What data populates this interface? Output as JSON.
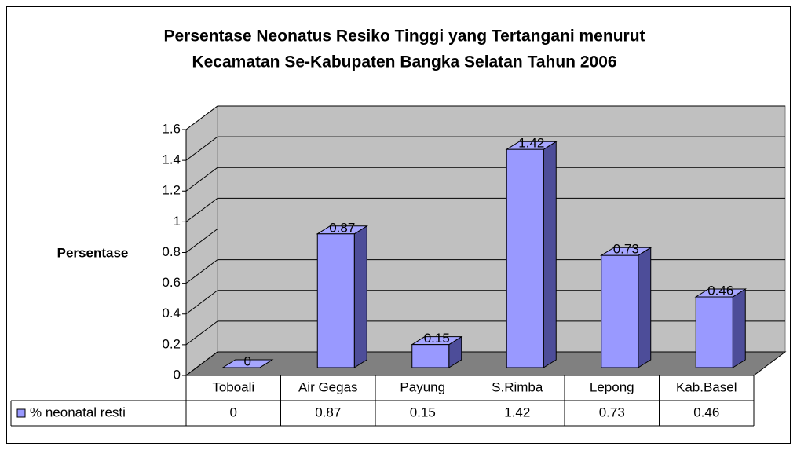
{
  "chart_data": {
    "type": "bar",
    "title": [
      "Persentase Neonatus Resiko Tinggi yang Tertangani menurut",
      "Kecamatan Se-Kabupaten Bangka Selatan Tahun 2006"
    ],
    "y_label": "Persentase",
    "categories": [
      "Toboali",
      "Air Gegas",
      "Payung",
      "S.Rimba",
      "Lepong",
      "Kab.Basel"
    ],
    "series": [
      {
        "name": "% neonatal resti",
        "color": "#9999ff",
        "values": [
          0,
          0.87,
          0.15,
          1.42,
          0.73,
          0.46
        ]
      }
    ],
    "ylim": [
      0,
      1.6
    ],
    "yticks": [
      0,
      0.2,
      0.4,
      0.6,
      0.8,
      1,
      1.2,
      1.4,
      1.6
    ],
    "grid": true
  }
}
